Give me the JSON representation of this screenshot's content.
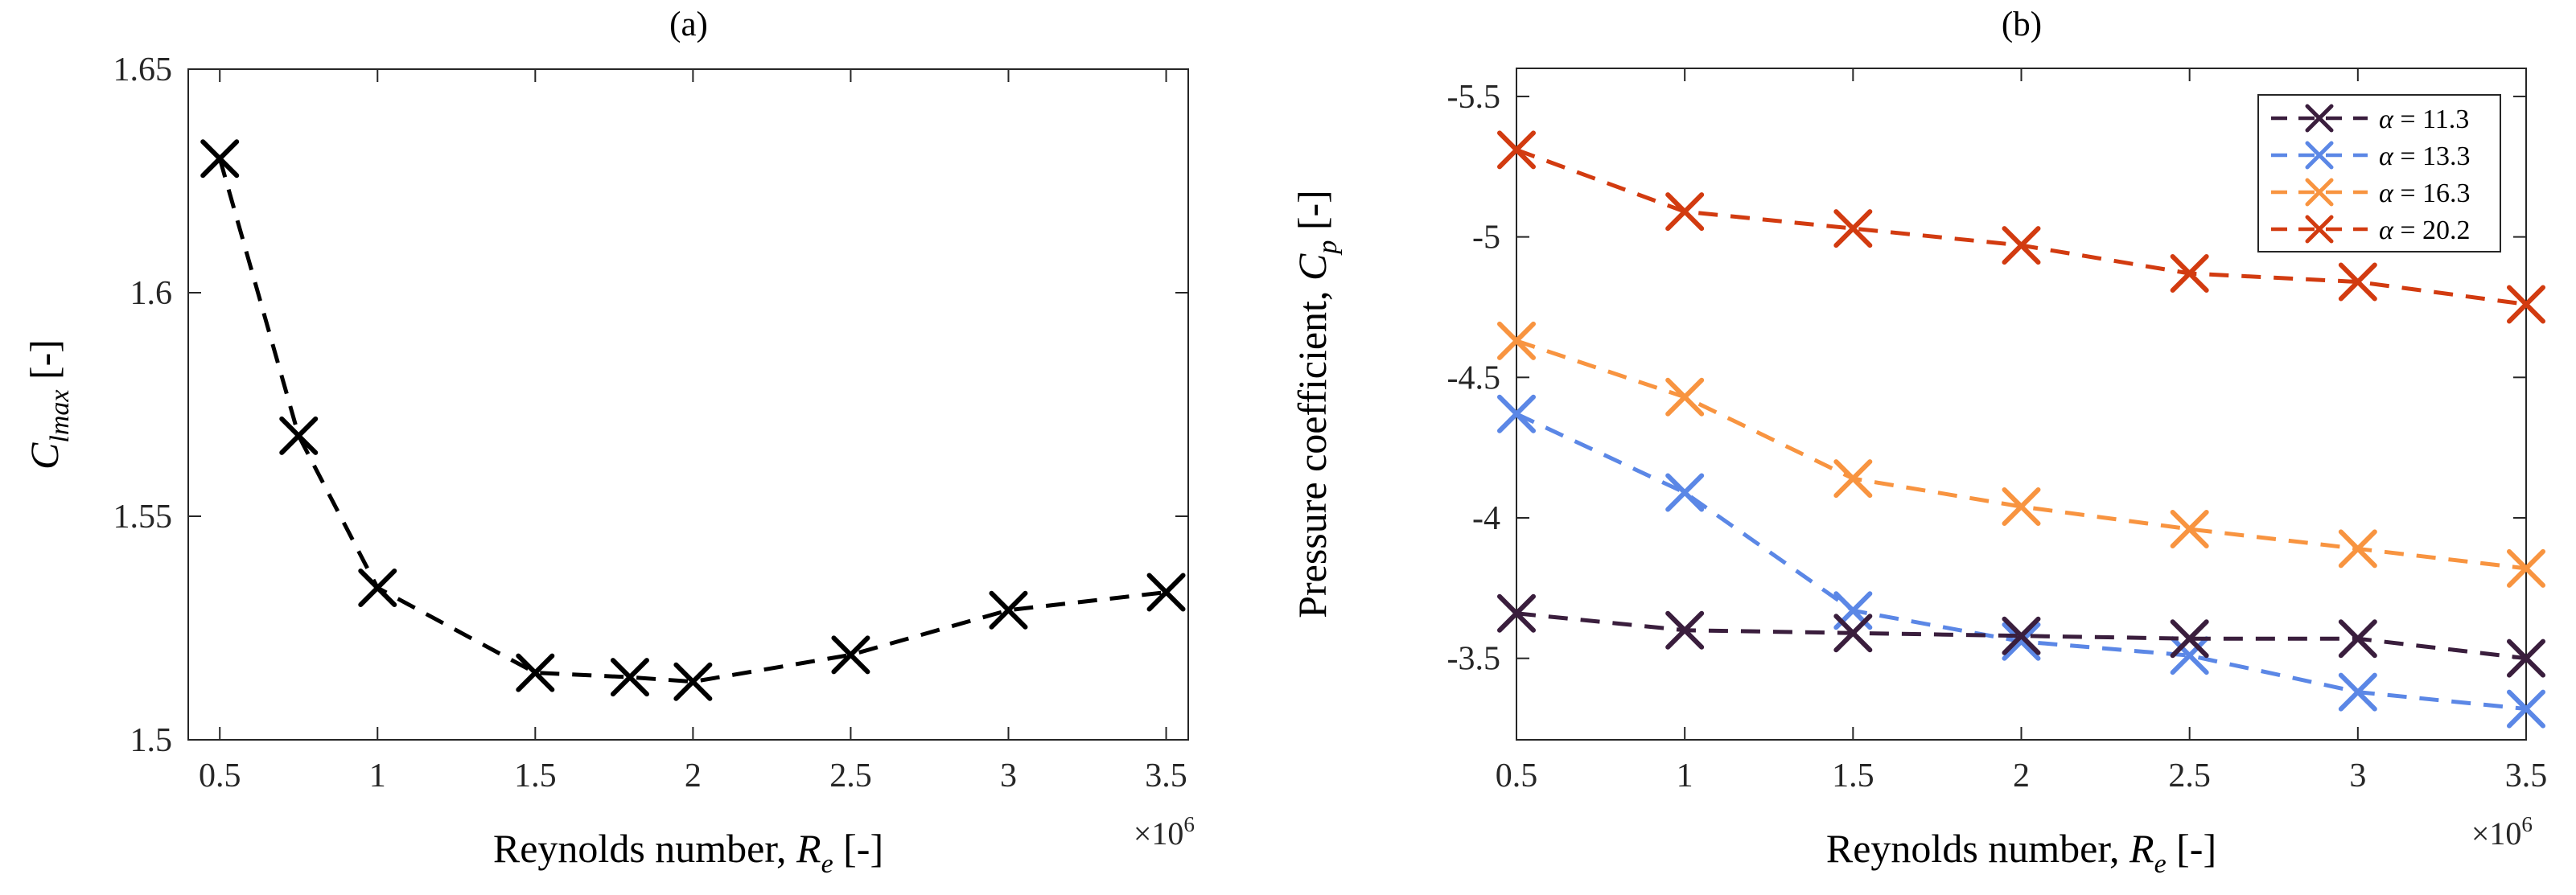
{
  "figure": {
    "background": "#ffffff",
    "axes_color": "#262626",
    "tick_label_color": "#262626",
    "text_color": "#000000"
  },
  "chart_data": [
    {
      "type": "line",
      "panel": "a",
      "title": "(a)",
      "xlabel": "Reynolds number, Re [-]",
      "xlabel_parts": [
        {
          "t": "Reynolds number, "
        },
        {
          "t": "R",
          "i": true
        },
        {
          "t": "e",
          "i": true,
          "sub": true
        },
        {
          "t": " [-]"
        }
      ],
      "ylabel": "Clmax [-]",
      "ylabel_parts": [
        {
          "t": "C",
          "i": true
        },
        {
          "t": "lmax",
          "i": true,
          "sub": true
        },
        {
          "t": " [-]"
        }
      ],
      "x_exponent": "×10^6",
      "x_exponent_parts": [
        {
          "t": "×10"
        },
        {
          "t": "6",
          "sup": true
        }
      ],
      "xlim": [
        0.4,
        3.57
      ],
      "ylim_top": 1.65,
      "ylim_bottom": 1.5,
      "grid": false,
      "xticks": [
        {
          "v": 0.5,
          "label": "0.5"
        },
        {
          "v": 1,
          "label": "1"
        },
        {
          "v": 1.5,
          "label": "1.5"
        },
        {
          "v": 2,
          "label": "2"
        },
        {
          "v": 2.5,
          "label": "2.5"
        },
        {
          "v": 3,
          "label": "3"
        },
        {
          "v": 3.5,
          "label": "3.5"
        }
      ],
      "yticks": [
        {
          "v": 1.5,
          "label": "1.5"
        },
        {
          "v": 1.55,
          "label": "1.55"
        },
        {
          "v": 1.6,
          "label": "1.6"
        },
        {
          "v": 1.65,
          "label": "1.65"
        }
      ],
      "draw_order": [
        0
      ],
      "legend": null,
      "series": [
        {
          "label": "Clmax",
          "color": "#000000",
          "marker": "x",
          "linestyle": "dashed",
          "x": [
            0.5,
            0.75,
            1,
            1.5,
            1.8,
            2,
            2.5,
            3,
            3.5
          ],
          "y": [
            1.63,
            1.568,
            1.534,
            1.515,
            1.514,
            1.513,
            1.519,
            1.529,
            1.533
          ]
        }
      ]
    },
    {
      "type": "line",
      "panel": "b",
      "title": "(b)",
      "xlabel": "Reynolds number, Re [-]",
      "xlabel_parts": [
        {
          "t": "Reynolds number, "
        },
        {
          "t": "R",
          "i": true
        },
        {
          "t": "e",
          "i": true,
          "sub": true
        },
        {
          "t": " [-]"
        }
      ],
      "ylabel": "Pressure coefficient, Cp [-]",
      "ylabel_parts": [
        {
          "t": "Pressure coefficient, "
        },
        {
          "t": "C",
          "i": true
        },
        {
          "t": "p",
          "i": true,
          "sub": true
        },
        {
          "t": " [-]"
        }
      ],
      "x_exponent": "×10^6",
      "x_exponent_parts": [
        {
          "t": "×10"
        },
        {
          "t": "6",
          "sup": true
        }
      ],
      "xlim": [
        0.5,
        3.5
      ],
      "ylim_top": -5.6,
      "ylim_bottom": -3.21,
      "grid": false,
      "xticks": [
        {
          "v": 0.5,
          "label": "0.5"
        },
        {
          "v": 1,
          "label": "1"
        },
        {
          "v": 1.5,
          "label": "1.5"
        },
        {
          "v": 2,
          "label": "2"
        },
        {
          "v": 2.5,
          "label": "2.5"
        },
        {
          "v": 3,
          "label": "3"
        },
        {
          "v": 3.5,
          "label": "3.5"
        }
      ],
      "yticks": [
        {
          "v": -5.5,
          "label": "-5.5"
        },
        {
          "v": -5,
          "label": "-5"
        },
        {
          "v": -4.5,
          "label": "-4.5"
        },
        {
          "v": -4,
          "label": "-4"
        },
        {
          "v": -3.5,
          "label": "-3.5"
        }
      ],
      "draw_order": [
        1,
        2,
        3,
        0
      ],
      "legend": {
        "position": "top-right"
      },
      "series": [
        {
          "label": "α = 11.3",
          "label_parts": [
            {
              "t": "α",
              "i": true
            },
            {
              "t": " = 11.3"
            }
          ],
          "color": "#3a1e3d",
          "marker": "x",
          "linestyle": "dashed",
          "x": [
            0.5,
            1,
            1.5,
            2,
            2.5,
            3,
            3.5
          ],
          "y": [
            -3.66,
            -3.6,
            -3.59,
            -3.58,
            -3.57,
            -3.57,
            -3.5
          ]
        },
        {
          "label": "α = 13.3",
          "label_parts": [
            {
              "t": "α",
              "i": true
            },
            {
              "t": " = 13.3"
            }
          ],
          "color": "#5b87e6",
          "marker": "x",
          "linestyle": "dashed",
          "x": [
            0.5,
            1,
            1.5,
            2,
            2.5,
            3,
            3.5
          ],
          "y": [
            -4.37,
            -4.09,
            -3.67,
            -3.56,
            -3.51,
            -3.38,
            -3.32
          ]
        },
        {
          "label": "α = 16.3",
          "label_parts": [
            {
              "t": "α",
              "i": true
            },
            {
              "t": " = 16.3"
            }
          ],
          "color": "#f89440",
          "marker": "x",
          "linestyle": "dashed",
          "x": [
            0.5,
            1,
            1.5,
            2,
            2.5,
            3,
            3.5
          ],
          "y": [
            -4.63,
            -4.43,
            -4.14,
            -4.04,
            -3.96,
            -3.89,
            -3.82
          ]
        },
        {
          "label": "α = 20.2",
          "label_parts": [
            {
              "t": "α",
              "i": true
            },
            {
              "t": " = 20.2"
            }
          ],
          "color": "#d23b10",
          "marker": "x",
          "linestyle": "dashed",
          "x": [
            0.5,
            1,
            1.5,
            2,
            2.5,
            3,
            3.5
          ],
          "y": [
            -5.31,
            -5.09,
            -5.03,
            -4.97,
            -4.87,
            -4.84,
            -4.76
          ]
        }
      ]
    }
  ]
}
